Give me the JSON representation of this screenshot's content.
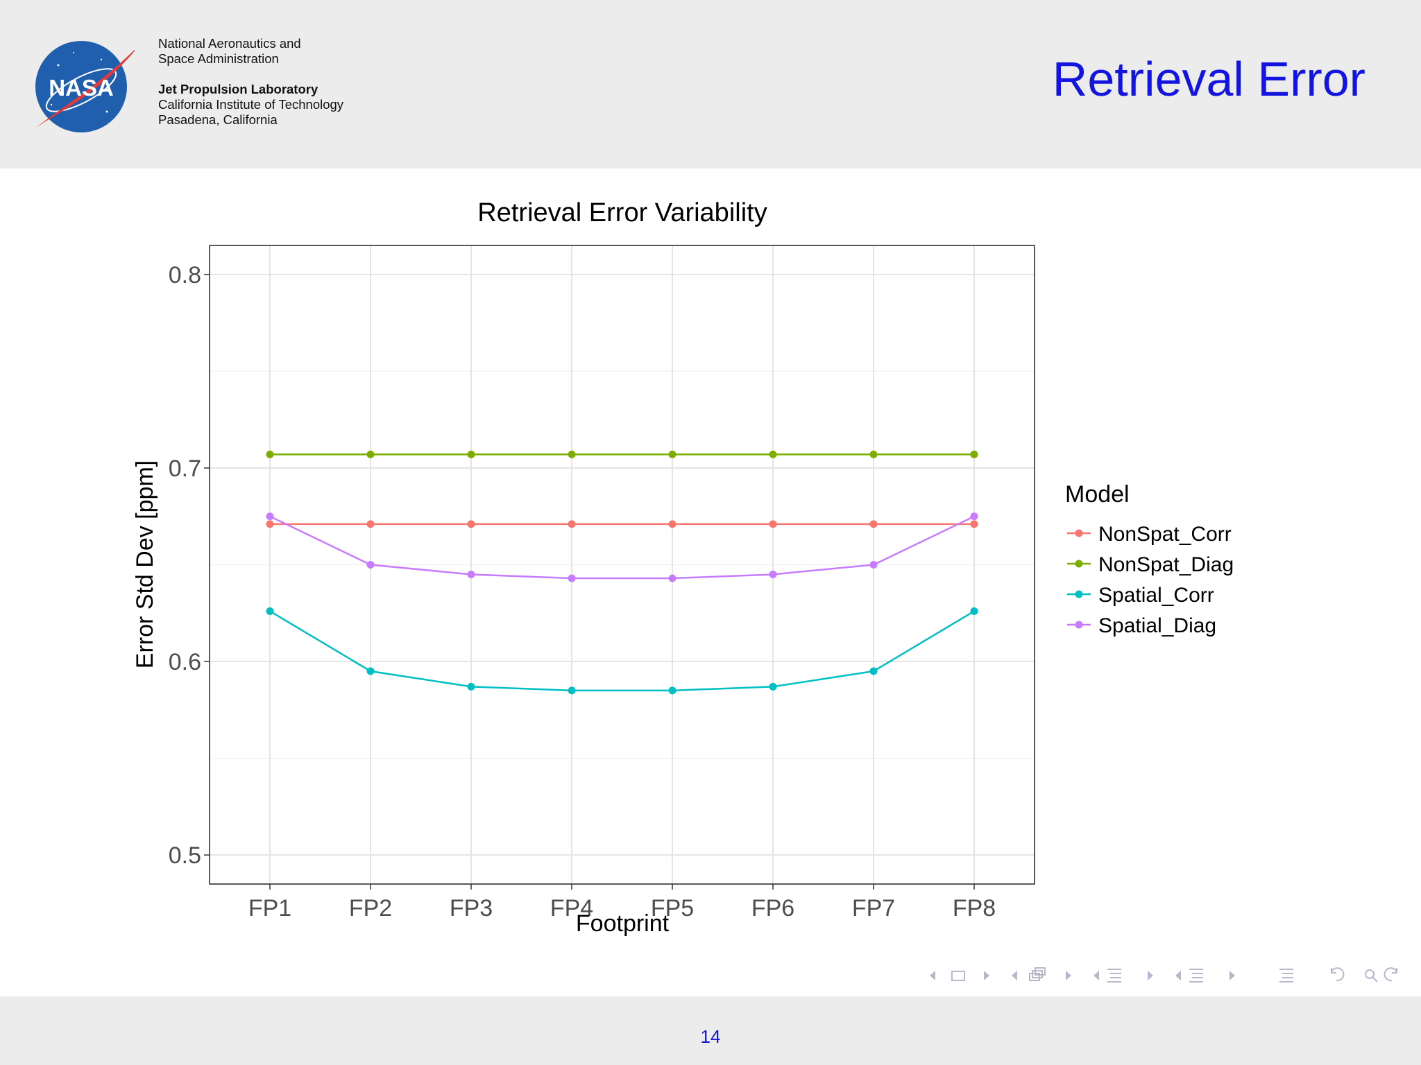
{
  "header": {
    "org_line1": "National Aeronautics and",
    "org_line2": "Space Administration",
    "lab_name": "Jet Propulsion Laboratory",
    "lab_line2": "California Institute of Technology",
    "lab_line3": "Pasadena, California",
    "logo_text": "NASA",
    "slide_title": "Retrieval Error"
  },
  "footer": {
    "page_number": "14"
  },
  "nav_icons": [
    "arrow-left-icon",
    "frame-icon",
    "arrow-right-icon",
    "arrow-left-icon",
    "subsection-icon",
    "arrow-right-icon",
    "arrow-left-icon",
    "section-icon",
    "arrow-right-icon",
    "arrow-left-icon",
    "section-icon",
    "arrow-right-icon",
    "align-icon",
    "undo-icon",
    "search-icon",
    "redo-icon"
  ],
  "chart_data": {
    "type": "line",
    "title": "Retrieval Error Variability",
    "xlabel": "Footprint",
    "ylabel": "Error Std Dev [ppm]",
    "categories": [
      "FP1",
      "FP2",
      "FP3",
      "FP4",
      "FP5",
      "FP6",
      "FP7",
      "FP8"
    ],
    "ylim": [
      0.485,
      0.815
    ],
    "yticks": [
      "0.5",
      "0.6",
      "0.7",
      "0.8"
    ],
    "ytick_values": [
      0.5,
      0.6,
      0.7,
      0.8
    ],
    "grid": true,
    "legend_title": "Model",
    "legend_placement": "right",
    "series": [
      {
        "name": "NonSpat_Corr",
        "color": "#f8766d",
        "values": [
          0.671,
          0.671,
          0.671,
          0.671,
          0.671,
          0.671,
          0.671,
          0.671
        ]
      },
      {
        "name": "NonSpat_Diag",
        "color": "#7cae00",
        "values": [
          0.707,
          0.707,
          0.707,
          0.707,
          0.707,
          0.707,
          0.707,
          0.707
        ]
      },
      {
        "name": "Spatial_Corr",
        "color": "#00bfc4",
        "values": [
          0.626,
          0.595,
          0.587,
          0.585,
          0.585,
          0.587,
          0.595,
          0.626
        ]
      },
      {
        "name": "Spatial_Diag",
        "color": "#c77cff",
        "values": [
          0.675,
          0.65,
          0.645,
          0.643,
          0.643,
          0.645,
          0.65,
          0.675
        ]
      }
    ]
  }
}
